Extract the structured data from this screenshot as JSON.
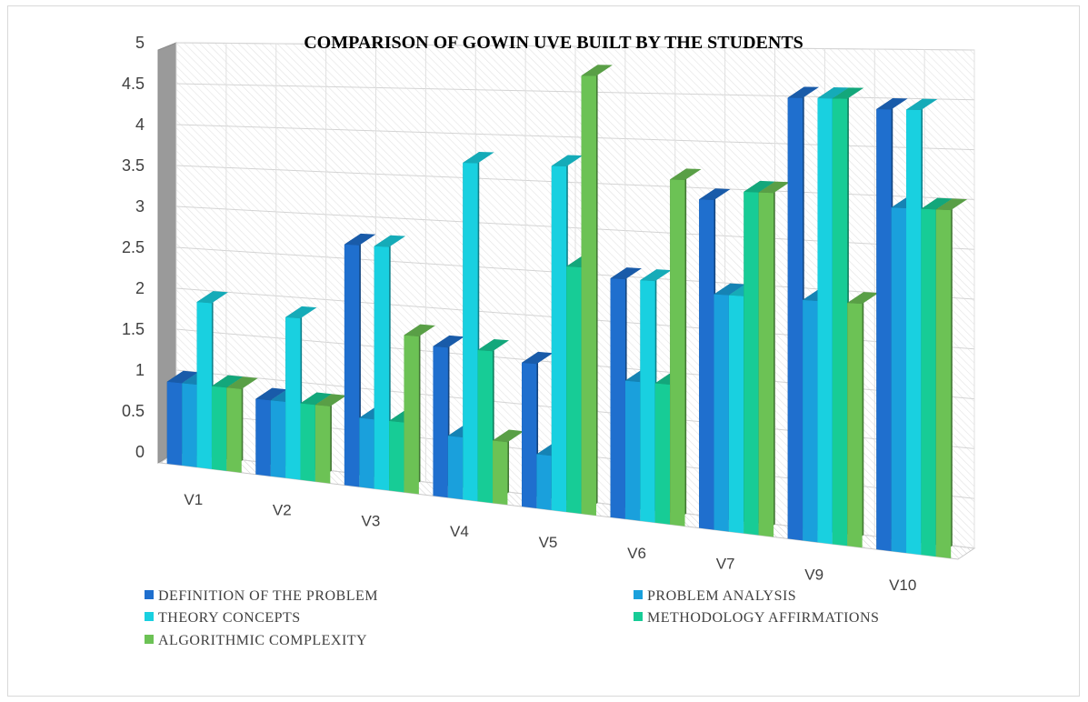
{
  "chart_data": {
    "type": "bar",
    "title": "COMPARISON OF GOWIN UVE BUILT BY THE STUDENTS",
    "xlabel": "",
    "ylabel": "",
    "ylim": [
      0,
      5
    ],
    "yticks": [
      "0",
      "0.5",
      "1",
      "1.5",
      "2",
      "2.5",
      "3",
      "3.5",
      "4",
      "4.5",
      "5"
    ],
    "categories": [
      "V1",
      "V2",
      "V3",
      "V4",
      "V5",
      "V6",
      "V7",
      "V9",
      "V10"
    ],
    "grid": true,
    "legend_position": "bottom",
    "series": [
      {
        "name": "DEFINITION OF THE PROBLEM",
        "color": "#1f6fce",
        "values": [
          1.0,
          0.9,
          2.8,
          1.7,
          1.6,
          2.6,
          3.5,
          4.6,
          4.5
        ]
      },
      {
        "name": "PROBLEM ANALYSIS",
        "color": "#1aa0dc",
        "values": [
          1.0,
          0.9,
          0.8,
          0.7,
          0.6,
          1.5,
          2.5,
          2.5,
          3.5
        ]
      },
      {
        "name": "THEORY CONCEPTS",
        "color": "#19d0e0",
        "values": [
          2.0,
          1.9,
          2.8,
          3.8,
          3.8,
          2.6,
          2.5,
          4.6,
          4.5
        ]
      },
      {
        "name": "METHODOLOGY AFFIRMATIONS",
        "color": "#17cc96",
        "values": [
          1.0,
          0.9,
          0.8,
          1.7,
          2.7,
          1.5,
          3.6,
          4.6,
          3.5
        ]
      },
      {
        "name": "ALGORITHMIC COMPLEXITY",
        "color": "#6cc255",
        "values": [
          1.0,
          0.9,
          1.8,
          0.7,
          4.8,
          3.7,
          3.6,
          2.5,
          3.5
        ]
      }
    ]
  }
}
